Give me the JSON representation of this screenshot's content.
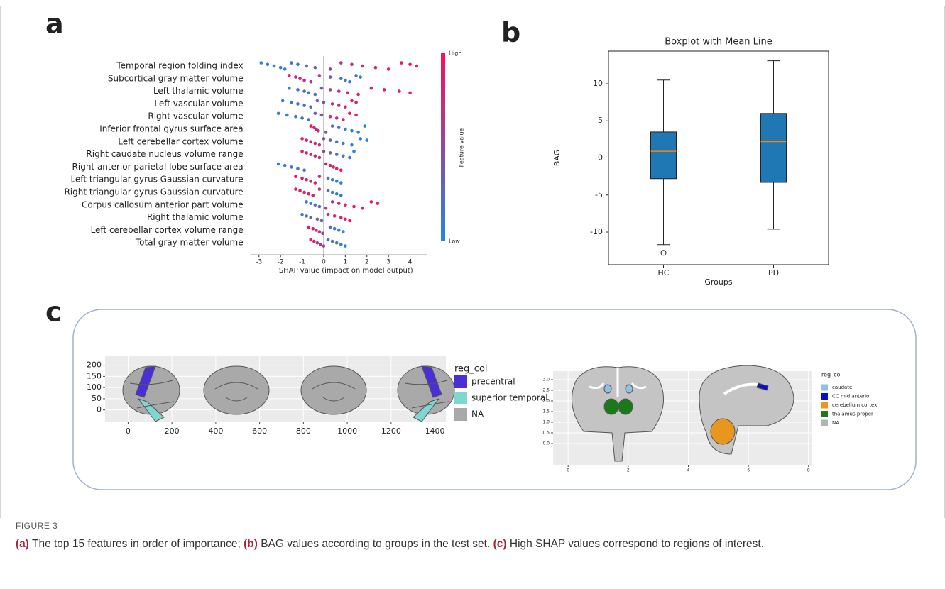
{
  "panel_labels": [
    "a",
    "b",
    "c"
  ],
  "chart_data": [
    {
      "type": "beeswarm",
      "xlabel": "SHAP value (impact on model output)",
      "xlim": [
        -3.4,
        4.8
      ],
      "xticks": [
        -3,
        -2,
        -1,
        0,
        1,
        2,
        3,
        4
      ],
      "low_color": "#1e88e5",
      "high_color": "#ff0d57",
      "colorbar": {
        "label": "Feature value",
        "high": "High",
        "low": "Low"
      },
      "series": [
        {
          "name": "Temporal region folding index",
          "values": [
            -2.9,
            -2.6,
            -2.3,
            -2.0,
            -1.8,
            -1.5,
            -1.2,
            -0.8,
            -0.4,
            0.3,
            0.8,
            1.3,
            1.8,
            2.4,
            3.0,
            3.6,
            4.0,
            4.3
          ],
          "feature_values": [
            0.05,
            0.1,
            0.1,
            0.15,
            0.1,
            0.2,
            0.15,
            0.25,
            0.3,
            0.5,
            0.6,
            0.65,
            0.75,
            0.8,
            0.85,
            0.9,
            0.95,
            0.95
          ]
        },
        {
          "name": "Subcortical gray matter volume",
          "values": [
            -1.6,
            -1.3,
            -1.1,
            -0.9,
            -0.6,
            -0.2,
            0.3,
            0.8,
            1.0,
            1.2,
            1.5,
            1.7
          ],
          "feature_values": [
            0.9,
            0.85,
            0.9,
            0.8,
            0.75,
            0.6,
            0.4,
            0.2,
            0.15,
            0.1,
            0.1,
            0.05
          ]
        },
        {
          "name": "Left thalamic volume",
          "values": [
            -1.6,
            -1.2,
            -0.9,
            -0.7,
            -0.4,
            -0.1,
            0.3,
            0.7,
            1.1,
            1.6,
            2.2,
            2.8,
            3.5,
            4.0
          ],
          "feature_values": [
            0.1,
            0.1,
            0.15,
            0.2,
            0.25,
            0.35,
            0.5,
            0.7,
            0.75,
            0.8,
            0.85,
            0.9,
            0.95,
            0.9
          ]
        },
        {
          "name": "Left vascular volume",
          "values": [
            -1.9,
            -1.5,
            -1.2,
            -0.9,
            -0.6,
            -0.3,
            0,
            0.4,
            0.7,
            1.0,
            1.3,
            1.5
          ],
          "feature_values": [
            0.1,
            0.1,
            0.15,
            0.2,
            0.25,
            0.35,
            0.5,
            0.75,
            0.8,
            0.85,
            0.9,
            0.9
          ]
        },
        {
          "name": "Right vascular volume",
          "values": [
            -2.1,
            -1.7,
            -1.3,
            -1.0,
            -0.7,
            -0.4,
            -0.1,
            0.3,
            0.6,
            0.9,
            1.2,
            1.5
          ],
          "feature_values": [
            0.1,
            0.1,
            0.15,
            0.2,
            0.25,
            0.35,
            0.5,
            0.75,
            0.8,
            0.85,
            0.9,
            0.9
          ]
        },
        {
          "name": "Inferior frontal gyrus surface area",
          "values": [
            -0.6,
            -0.45,
            -0.35,
            -0.25,
            0.1,
            0.4,
            0.7,
            1.0,
            1.3,
            1.6,
            1.9
          ],
          "feature_values": [
            0.9,
            0.85,
            0.8,
            0.7,
            0.3,
            0.2,
            0.15,
            0.1,
            0.1,
            0.05,
            0.05
          ]
        },
        {
          "name": "Left cerebellar cortex volume",
          "values": [
            -1.0,
            -0.8,
            -0.6,
            -0.4,
            -0.2,
            0,
            0.3,
            0.6,
            0.9,
            1.3,
            1.7,
            2.0
          ],
          "feature_values": [
            0.9,
            0.9,
            0.85,
            0.8,
            0.7,
            0.5,
            0.3,
            0.2,
            0.15,
            0.1,
            0.1,
            0.05
          ]
        },
        {
          "name": "Right caudate nucleus volume range",
          "values": [
            -1.0,
            -0.8,
            -0.6,
            -0.4,
            -0.2,
            0,
            0.3,
            0.6,
            0.9,
            1.2,
            1.4
          ],
          "feature_values": [
            0.9,
            0.9,
            0.85,
            0.8,
            0.7,
            0.5,
            0.3,
            0.2,
            0.15,
            0.1,
            0.05
          ]
        },
        {
          "name": "Right anterior parietal lobe surface area",
          "values": [
            -2.1,
            -1.8,
            -1.5,
            -1.2,
            -0.9,
            0.1,
            0.3,
            0.45,
            0.6,
            0.8
          ],
          "feature_values": [
            0.05,
            0.1,
            0.1,
            0.15,
            0.2,
            0.8,
            0.85,
            0.9,
            0.85,
            0.9
          ]
        },
        {
          "name": "Left triangular gyrus Gaussian curvature",
          "values": [
            -1.3,
            -1.0,
            -0.8,
            -0.6,
            -0.4,
            -0.2,
            0.2,
            0.4,
            0.6,
            0.8
          ],
          "feature_values": [
            0.95,
            0.9,
            0.9,
            0.85,
            0.8,
            0.7,
            0.2,
            0.1,
            0.1,
            0.05
          ]
        },
        {
          "name": "Right triangular gyrus Gaussian curvature",
          "values": [
            -1.3,
            -1.1,
            -0.9,
            -0.7,
            -0.5,
            -0.2,
            0.2,
            0.4,
            0.6,
            0.8
          ],
          "feature_values": [
            0.95,
            0.9,
            0.9,
            0.85,
            0.8,
            0.6,
            0.2,
            0.1,
            0.1,
            0.05
          ]
        },
        {
          "name": "Corpus callosum anterior part volume",
          "values": [
            -0.8,
            -0.6,
            -0.4,
            -0.2,
            0.1,
            0.4,
            0.7,
            1.0,
            1.4,
            1.8,
            2.2,
            2.5
          ],
          "feature_values": [
            0.1,
            0.15,
            0.2,
            0.3,
            0.6,
            0.75,
            0.8,
            0.85,
            0.9,
            0.9,
            0.95,
            0.9
          ]
        },
        {
          "name": "Right thalamic volume",
          "values": [
            -1.0,
            -0.8,
            -0.6,
            -0.3,
            -0.1,
            0.2,
            0.5,
            0.8,
            1.0,
            1.2
          ],
          "feature_values": [
            0.1,
            0.15,
            0.2,
            0.3,
            0.4,
            0.75,
            0.8,
            0.85,
            0.9,
            0.95
          ]
        },
        {
          "name": "Left cerebellar cortex volume range",
          "values": [
            -0.7,
            -0.5,
            -0.35,
            -0.2,
            -0.05,
            0.3,
            0.5,
            0.7,
            0.9
          ],
          "feature_values": [
            0.9,
            0.85,
            0.8,
            0.7,
            0.5,
            0.2,
            0.15,
            0.1,
            0.05
          ]
        },
        {
          "name": "Total gray matter volume",
          "values": [
            -0.6,
            -0.45,
            -0.3,
            -0.15,
            0,
            0.2,
            0.4,
            0.6,
            0.8,
            1.0
          ],
          "feature_values": [
            0.9,
            0.85,
            0.8,
            0.7,
            0.5,
            0.25,
            0.2,
            0.15,
            0.1,
            0.05
          ]
        }
      ]
    },
    {
      "type": "box",
      "title": "Boxplot with Mean Line",
      "xlabel": "Groups",
      "ylabel": "BAG",
      "categories": [
        "HC",
        "PD"
      ],
      "color": "#1f77b4",
      "median_color": "#ff7f0e",
      "ylim": [
        -14.4,
        14.4
      ],
      "yticks": [
        -10,
        -5,
        0,
        5,
        10
      ],
      "boxes": [
        {
          "min": -11.7,
          "q1": -2.8,
          "median": 0.9,
          "q3": 3.5,
          "max": 10.5,
          "outliers": [
            -12.8
          ]
        },
        {
          "min": -9.6,
          "q1": -3.3,
          "median": 2.2,
          "q3": 6.0,
          "max": 13.1,
          "outliers": []
        }
      ]
    },
    {
      "type": "brain-map",
      "xlim": [
        -105,
        1450
      ],
      "xticks": [
        0,
        200,
        400,
        600,
        800,
        1000,
        1200,
        1400
      ],
      "ylim": [
        -55,
        240
      ],
      "yticks": [
        0,
        50,
        100,
        150,
        200
      ],
      "legend": {
        "title": "reg_col",
        "items": [
          {
            "name": "precentral",
            "color": "#4b2ed6"
          },
          {
            "name": "superior temporal",
            "color": "#7fd6d2"
          },
          {
            "name": "NA",
            "color": "#a9a9a9"
          }
        ]
      }
    },
    {
      "type": "brain-map",
      "xlim": [
        -0.5,
        8.1
      ],
      "xticks": [
        0,
        2,
        4,
        6,
        8
      ],
      "ylim": [
        -1,
        3.4
      ],
      "yticks": [
        {
          "value": 0,
          "label": "0.0"
        },
        {
          "value": 0.5,
          "label": "0.5"
        },
        {
          "value": 1,
          "label": "1.0"
        },
        {
          "value": 1.5,
          "label": "1.5"
        },
        {
          "value": 2,
          "label": "2.0"
        },
        {
          "value": 2.5,
          "label": "2.5"
        },
        {
          "value": 3,
          "label": "3.0"
        }
      ],
      "legend": {
        "title": "reg_col",
        "items": [
          {
            "name": "caudate",
            "color": "#8fc1e3"
          },
          {
            "name": "CC mid anterior",
            "color": "#0b10c4"
          },
          {
            "name": "cerebellum cortex",
            "color": "#e8961e"
          },
          {
            "name": "thalamus proper",
            "color": "#1a7a1a"
          },
          {
            "name": "NA",
            "color": "#b3b3b3"
          }
        ]
      }
    }
  ],
  "caption": {
    "figure": "FIGURE 3",
    "parts": [
      {
        "label": "(a)",
        "text": " The top 15 features in order of importance; "
      },
      {
        "label": "(b)",
        "text": " BAG values according to groups in the test set. "
      },
      {
        "label": "(c)",
        "text": " High SHAP values correspond to regions of interest."
      }
    ]
  }
}
